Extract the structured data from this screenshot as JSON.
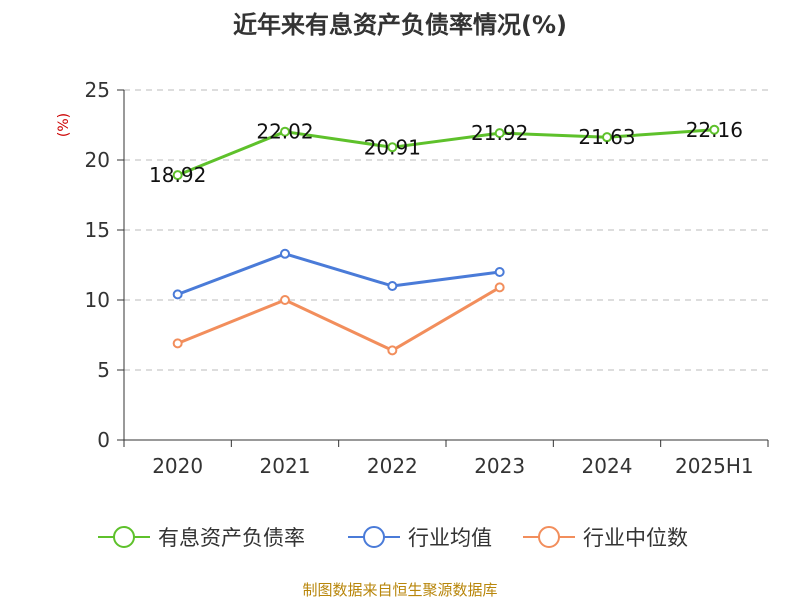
{
  "chart_data": {
    "type": "line",
    "title": "近年来有息资产负债率情况(%)",
    "y_unit": "(%)",
    "categories": [
      "2020",
      "2021",
      "2022",
      "2023",
      "2024",
      "2025H1"
    ],
    "ylim": [
      0,
      25
    ],
    "yticks": [
      0,
      5,
      10,
      15,
      20,
      25
    ],
    "grid": true,
    "legend_position": "bottom",
    "series": [
      {
        "name": "有息资产负债率",
        "color": "#5ec12b",
        "show_labels": true,
        "values": [
          18.92,
          22.02,
          20.91,
          21.92,
          21.63,
          22.16
        ]
      },
      {
        "name": "行业均值",
        "color": "#4a7bd8",
        "show_labels": false,
        "values": [
          10.4,
          13.3,
          11.0,
          12.0,
          null,
          null
        ]
      },
      {
        "name": "行业中位数",
        "color": "#f28e5c",
        "show_labels": false,
        "values": [
          6.9,
          10.0,
          6.4,
          10.9,
          null,
          null
        ]
      }
    ]
  },
  "source_text": "制图数据来自恒生聚源数据库"
}
